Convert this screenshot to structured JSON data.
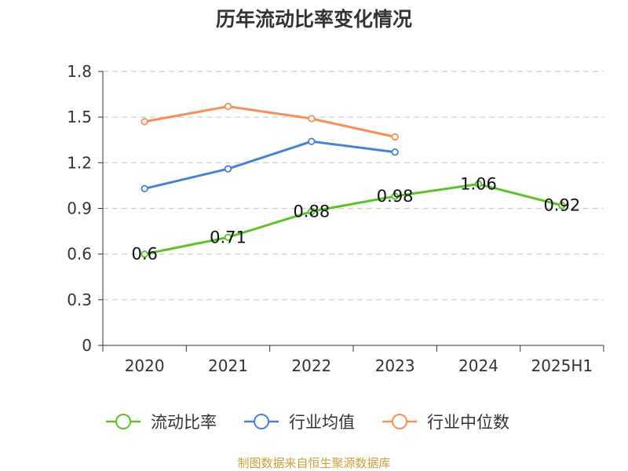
{
  "chart_data": {
    "type": "line",
    "title": "历年流动比率变化情况",
    "categories": [
      "2020",
      "2021",
      "2022",
      "2023",
      "2024",
      "2025H1"
    ],
    "ylim": [
      0,
      1.8
    ],
    "yticks": [
      "0",
      "0.3",
      "0.6",
      "0.9",
      "1.2",
      "1.5",
      "1.8"
    ],
    "grid": true,
    "legend_position": "bottom",
    "series": [
      {
        "name": "流动比率",
        "color": "#5cc22a",
        "values": [
          0.6,
          0.71,
          0.88,
          0.98,
          1.06,
          0.92
        ],
        "labels": [
          "0.6",
          "0.71",
          "0.88",
          "0.98",
          "1.06",
          "0.92"
        ]
      },
      {
        "name": "行业均值",
        "color": "#4a7fd8",
        "values": [
          1.03,
          1.16,
          1.34,
          1.27,
          null,
          null
        ]
      },
      {
        "name": "行业中位数",
        "color": "#f5905a",
        "values": [
          1.47,
          1.57,
          1.49,
          1.37,
          null,
          null
        ]
      }
    ],
    "source": "制图数据来自恒生聚源数据库"
  }
}
